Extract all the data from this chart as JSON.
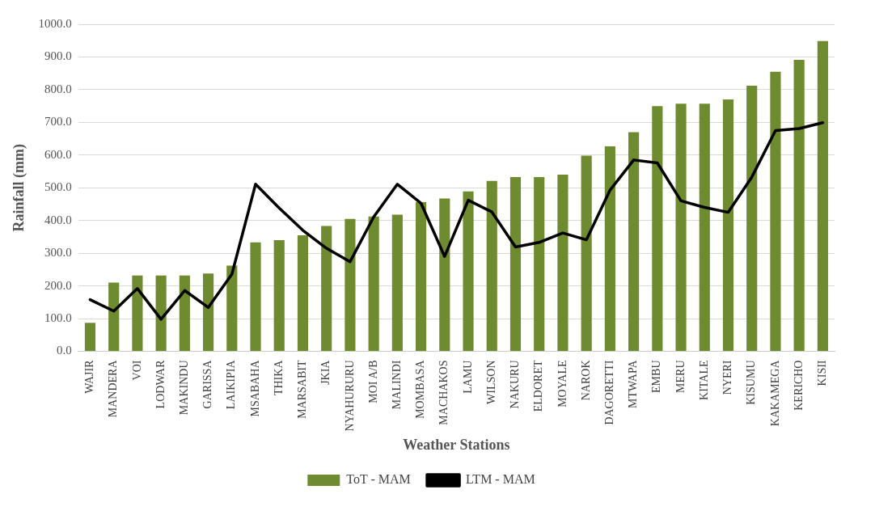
{
  "chart_data": {
    "type": "bar",
    "xlabel": "Weather Stations",
    "ylabel": "Rainfall (mm)",
    "categories": [
      "WAJIR",
      "MANDERA",
      "VOI",
      "LODWAR",
      "MAKINDU",
      "GARISSA",
      "LAIKIPIA",
      "MSABAHA",
      "THIKA",
      "MARSABIT",
      "JKIA",
      "NYAHURURU",
      "MOI A/B",
      "MALINDI",
      "MOMBASA",
      "MACHAKOS",
      "LAMU",
      "WILSON",
      "NAKURU",
      "ELDORET",
      "MOYALE",
      "NAROK",
      "DAGORETTI",
      "MTWAPA",
      "EMBU",
      "MERU",
      "KITALE",
      "NYERI",
      "KISUMU",
      "KAKAMEGA",
      "KERICHO",
      "KISII"
    ],
    "series": [
      {
        "name": "ToT - MAM",
        "color": "#6e8b2f",
        "values": [
          87,
          210,
          232,
          232,
          232,
          238,
          262,
          333,
          340,
          355,
          383,
          405,
          412,
          418,
          456,
          467,
          489,
          521,
          533,
          533,
          540,
          598,
          627,
          670,
          750,
          757,
          757,
          770,
          812,
          855,
          891,
          949
        ]
      },
      {
        "name": "LTM - MAM",
        "type": "line",
        "color": "#000000",
        "values": [
          158,
          123,
          192,
          98,
          186,
          134,
          236,
          511,
          438,
          370,
          315,
          274,
          411,
          511,
          453,
          290,
          462,
          426,
          319,
          333,
          362,
          341,
          493,
          585,
          576,
          460,
          440,
          425,
          533,
          675,
          681,
          699
        ]
      }
    ],
    "ylim": [
      0,
      1000
    ],
    "yticks": [
      {
        "value": 0,
        "label": "0.0"
      },
      {
        "value": 100,
        "label": "100.0"
      },
      {
        "value": 200,
        "label": "200.0"
      },
      {
        "value": 300,
        "label": "300.0"
      },
      {
        "value": 400,
        "label": "400.0"
      },
      {
        "value": 500,
        "label": "500.0"
      },
      {
        "value": 600,
        "label": "600.0"
      },
      {
        "value": 700,
        "label": "700.0"
      },
      {
        "value": 800,
        "label": "800.0"
      },
      {
        "value": 900,
        "label": "900.0"
      },
      {
        "value": 1000,
        "label": "1000.0"
      }
    ],
    "grid": "y",
    "legend": "bottom",
    "marker": "none",
    "line_style": "solid"
  }
}
